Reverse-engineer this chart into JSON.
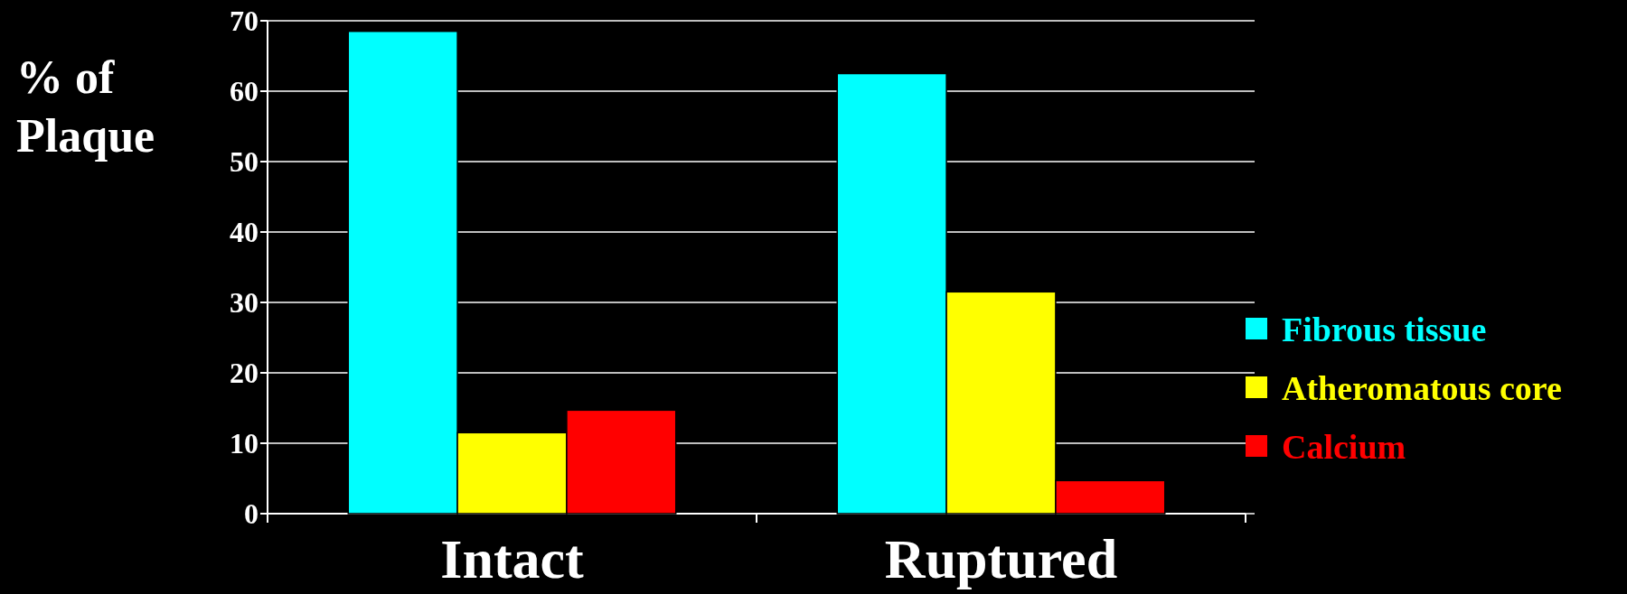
{
  "chart_data": {
    "type": "bar",
    "ylabel": "% of Plaque",
    "categories": [
      "Intact",
      "Ruptured"
    ],
    "series": [
      {
        "name": "Fibrous tissue",
        "color": "#00ffff",
        "values": [
          68.5,
          62.5
        ]
      },
      {
        "name": "Atheromatous core",
        "color": "#ffff00",
        "values": [
          11.5,
          31.5
        ]
      },
      {
        "name": "Calcium",
        "color": "#ff0000",
        "values": [
          14.7,
          4.7
        ]
      }
    ],
    "ylim": [
      0,
      70
    ],
    "yticks": [
      0,
      10,
      20,
      30,
      40,
      50,
      60,
      70
    ],
    "grid": "y",
    "legend": "right"
  }
}
